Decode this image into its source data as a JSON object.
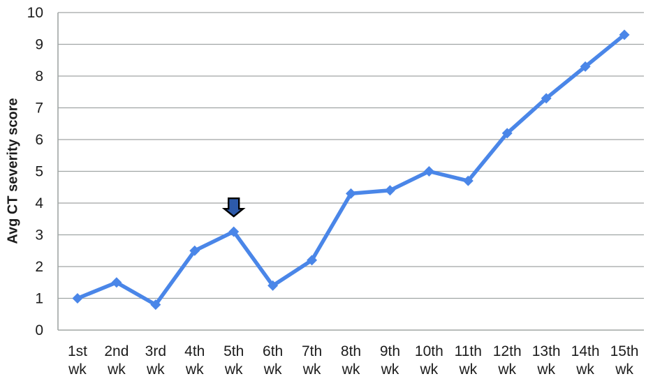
{
  "chart_data": {
    "type": "line",
    "title": "",
    "xlabel": "",
    "ylabel": "Avg CT severity score",
    "ylim": [
      0,
      10
    ],
    "y_ticks": [
      0,
      1,
      2,
      3,
      4,
      5,
      6,
      7,
      8,
      9,
      10
    ],
    "grid": "horizontal",
    "legend": "none",
    "marker": "diamond",
    "categories": [
      "1st wk",
      "2nd wk",
      "3rd wk",
      "4th wk",
      "5th wk",
      "6th wk",
      "7th wk",
      "8th wk",
      "9th wk",
      "10th wk",
      "11th wk",
      "12th wk",
      "13th wk",
      "14th wk",
      "15th wk"
    ],
    "series": [
      {
        "values": [
          1.0,
          1.5,
          0.8,
          2.5,
          3.1,
          1.4,
          2.2,
          4.3,
          4.4,
          5.0,
          4.7,
          6.2,
          7.3,
          8.3,
          9.3
        ]
      }
    ],
    "annotation": {
      "shape": "down-arrow",
      "category_index": 4,
      "points_to_value": 3.1,
      "top_value": 4.15,
      "tip_value": 3.58
    },
    "colors": {
      "line": "#4a86e8",
      "marker": "#4a86e8",
      "gridline": "#a0a5a4",
      "axis": "#a0a5a4",
      "text": "#1c1c1c",
      "annotation_fill": "#2d5aaa",
      "annotation_stroke": "#000000"
    }
  }
}
